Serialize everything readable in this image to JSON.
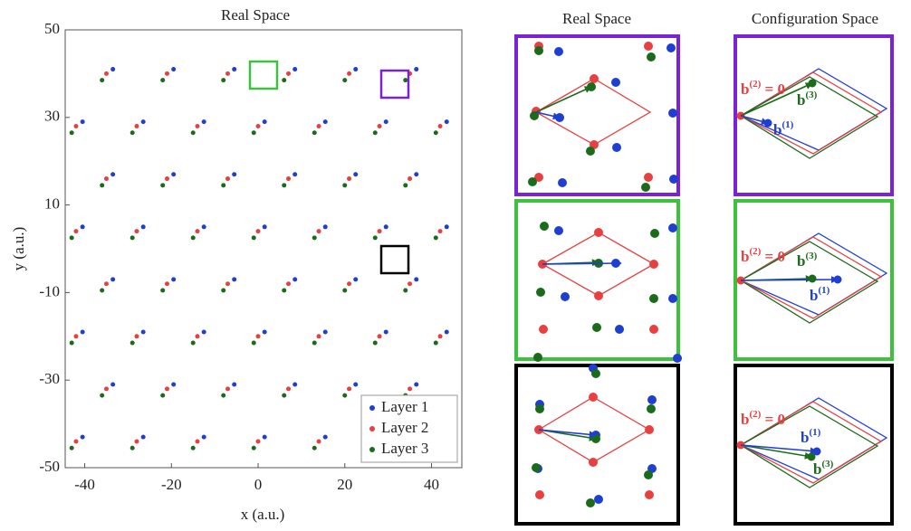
{
  "chart_data": {
    "type": "scatter",
    "title": "Real Space",
    "x_label": "x (a.u.)",
    "y_label": "y (a.u.)",
    "xlim": [
      -44.5,
      47
    ],
    "ylim": [
      -50,
      50
    ],
    "xticks": [
      -40,
      -20,
      0,
      20,
      40
    ],
    "yticks": [
      -50,
      -30,
      -10,
      10,
      30,
      50
    ],
    "legend": "lower right",
    "series": [
      {
        "name": "Layer 1",
        "color": "#1f3fd1",
        "x": [
          -40.5,
          -26.5,
          -12.5,
          1.5,
          15.5,
          29.5,
          43.5,
          -33.5,
          -19.5,
          -5.5,
          8.5,
          22.5,
          36.5,
          -40.5,
          -26.5,
          -12.5,
          1.5,
          15.5,
          29.5,
          43.5,
          -33.5,
          -19.5,
          -5.5,
          8.5,
          22.5,
          36.5,
          -40.5,
          -26.5,
          -12.5,
          1.5,
          15.5,
          29.5,
          43.5,
          -33.5,
          -19.5,
          -5.5,
          8.5,
          22.5,
          36.5,
          -40.5,
          -26.5,
          -12.5,
          1.5,
          15.5,
          29.5,
          43.5,
          -33.5,
          -19.5,
          -5.5,
          8.5,
          22.5,
          36.5
        ],
        "y": [
          -43,
          -43,
          -43,
          -43,
          -43,
          -43,
          -43,
          -31,
          -31,
          -31,
          -31,
          -31,
          -31,
          -19,
          -19,
          -19,
          -19,
          -19,
          -19,
          -19,
          -7,
          -7,
          -7,
          -7,
          -7,
          -7,
          5,
          5,
          5,
          5,
          5,
          5,
          5,
          17,
          17,
          17,
          17,
          17,
          17,
          29,
          29,
          29,
          29,
          29,
          29,
          29,
          41,
          41,
          41,
          41,
          41,
          41
        ]
      },
      {
        "name": "Layer 2",
        "color": "#e84040",
        "x": [
          -42,
          -28,
          -14,
          0,
          14,
          28,
          42,
          -35,
          -21,
          -7,
          7,
          21,
          35,
          -42,
          -28,
          -14,
          0,
          14,
          28,
          42,
          -35,
          -21,
          -7,
          7,
          21,
          35,
          -42,
          -28,
          -14,
          0,
          14,
          28,
          42,
          -35,
          -21,
          -7,
          7,
          21,
          35,
          -42,
          -28,
          -14,
          0,
          14,
          28,
          42,
          -35,
          -21,
          -7,
          7,
          21,
          35
        ],
        "y": [
          -44,
          -44,
          -44,
          -44,
          -44,
          -44,
          -44,
          -32,
          -32,
          -32,
          -32,
          -32,
          -32,
          -20,
          -20,
          -20,
          -20,
          -20,
          -20,
          -20,
          -8,
          -8,
          -8,
          -8,
          -8,
          -8,
          4,
          4,
          4,
          4,
          4,
          4,
          4,
          16,
          16,
          16,
          16,
          16,
          16,
          28,
          28,
          28,
          28,
          28,
          28,
          28,
          40,
          40,
          40,
          40,
          40,
          40
        ]
      },
      {
        "name": "Layer 3",
        "color": "#1a6b1a",
        "x": [
          -43,
          -29,
          -15,
          -1,
          13,
          27,
          41,
          -36,
          -22,
          -8,
          6,
          20,
          34,
          -43,
          -29,
          -15,
          -1,
          13,
          27,
          41,
          -36,
          -22,
          -8,
          6,
          20,
          34,
          -43,
          -29,
          -15,
          -1,
          13,
          27,
          41,
          -36,
          -22,
          -8,
          6,
          20,
          34,
          -43,
          -29,
          -15,
          -1,
          13,
          27,
          41,
          -36,
          -22,
          -8,
          6,
          20,
          34
        ],
        "y": [
          -45.5,
          -45.5,
          -45.5,
          -45.5,
          -45.5,
          -45.5,
          -45.5,
          -33.5,
          -33.5,
          -33.5,
          -33.5,
          -33.5,
          -33.5,
          -21.5,
          -21.5,
          -21.5,
          -21.5,
          -21.5,
          -21.5,
          -21.5,
          -9.5,
          -9.5,
          -9.5,
          -9.5,
          -9.5,
          -9.5,
          2.5,
          2.5,
          2.5,
          2.5,
          2.5,
          2.5,
          2.5,
          14.5,
          14.5,
          14.5,
          14.5,
          14.5,
          14.5,
          26.5,
          26.5,
          26.5,
          26.5,
          26.5,
          26.5,
          26.5,
          38.5,
          38.5,
          38.5,
          38.5,
          38.5,
          38.5
        ]
      }
    ]
  },
  "insets": {
    "real_title": "Real Space",
    "config_title": "Configuration Space",
    "config_labels": [
      [
        {
          "base": "b",
          "sup": "(2)",
          "tail": " = 0"
        },
        {
          "base": "b",
          "sup": "(3)"
        },
        {
          "base": "b",
          "sup": "(1)"
        }
      ],
      [
        {
          "base": "b",
          "sup": "(2)",
          "tail": " = 0"
        },
        {
          "base": "b",
          "sup": "(3)"
        },
        {
          "base": "b",
          "sup": "(1)"
        }
      ],
      [
        {
          "base": "b",
          "sup": "(2)",
          "tail": " = 0"
        },
        {
          "base": "b",
          "sup": "(1)"
        },
        {
          "base": "b",
          "sup": "(3)"
        }
      ]
    ]
  }
}
